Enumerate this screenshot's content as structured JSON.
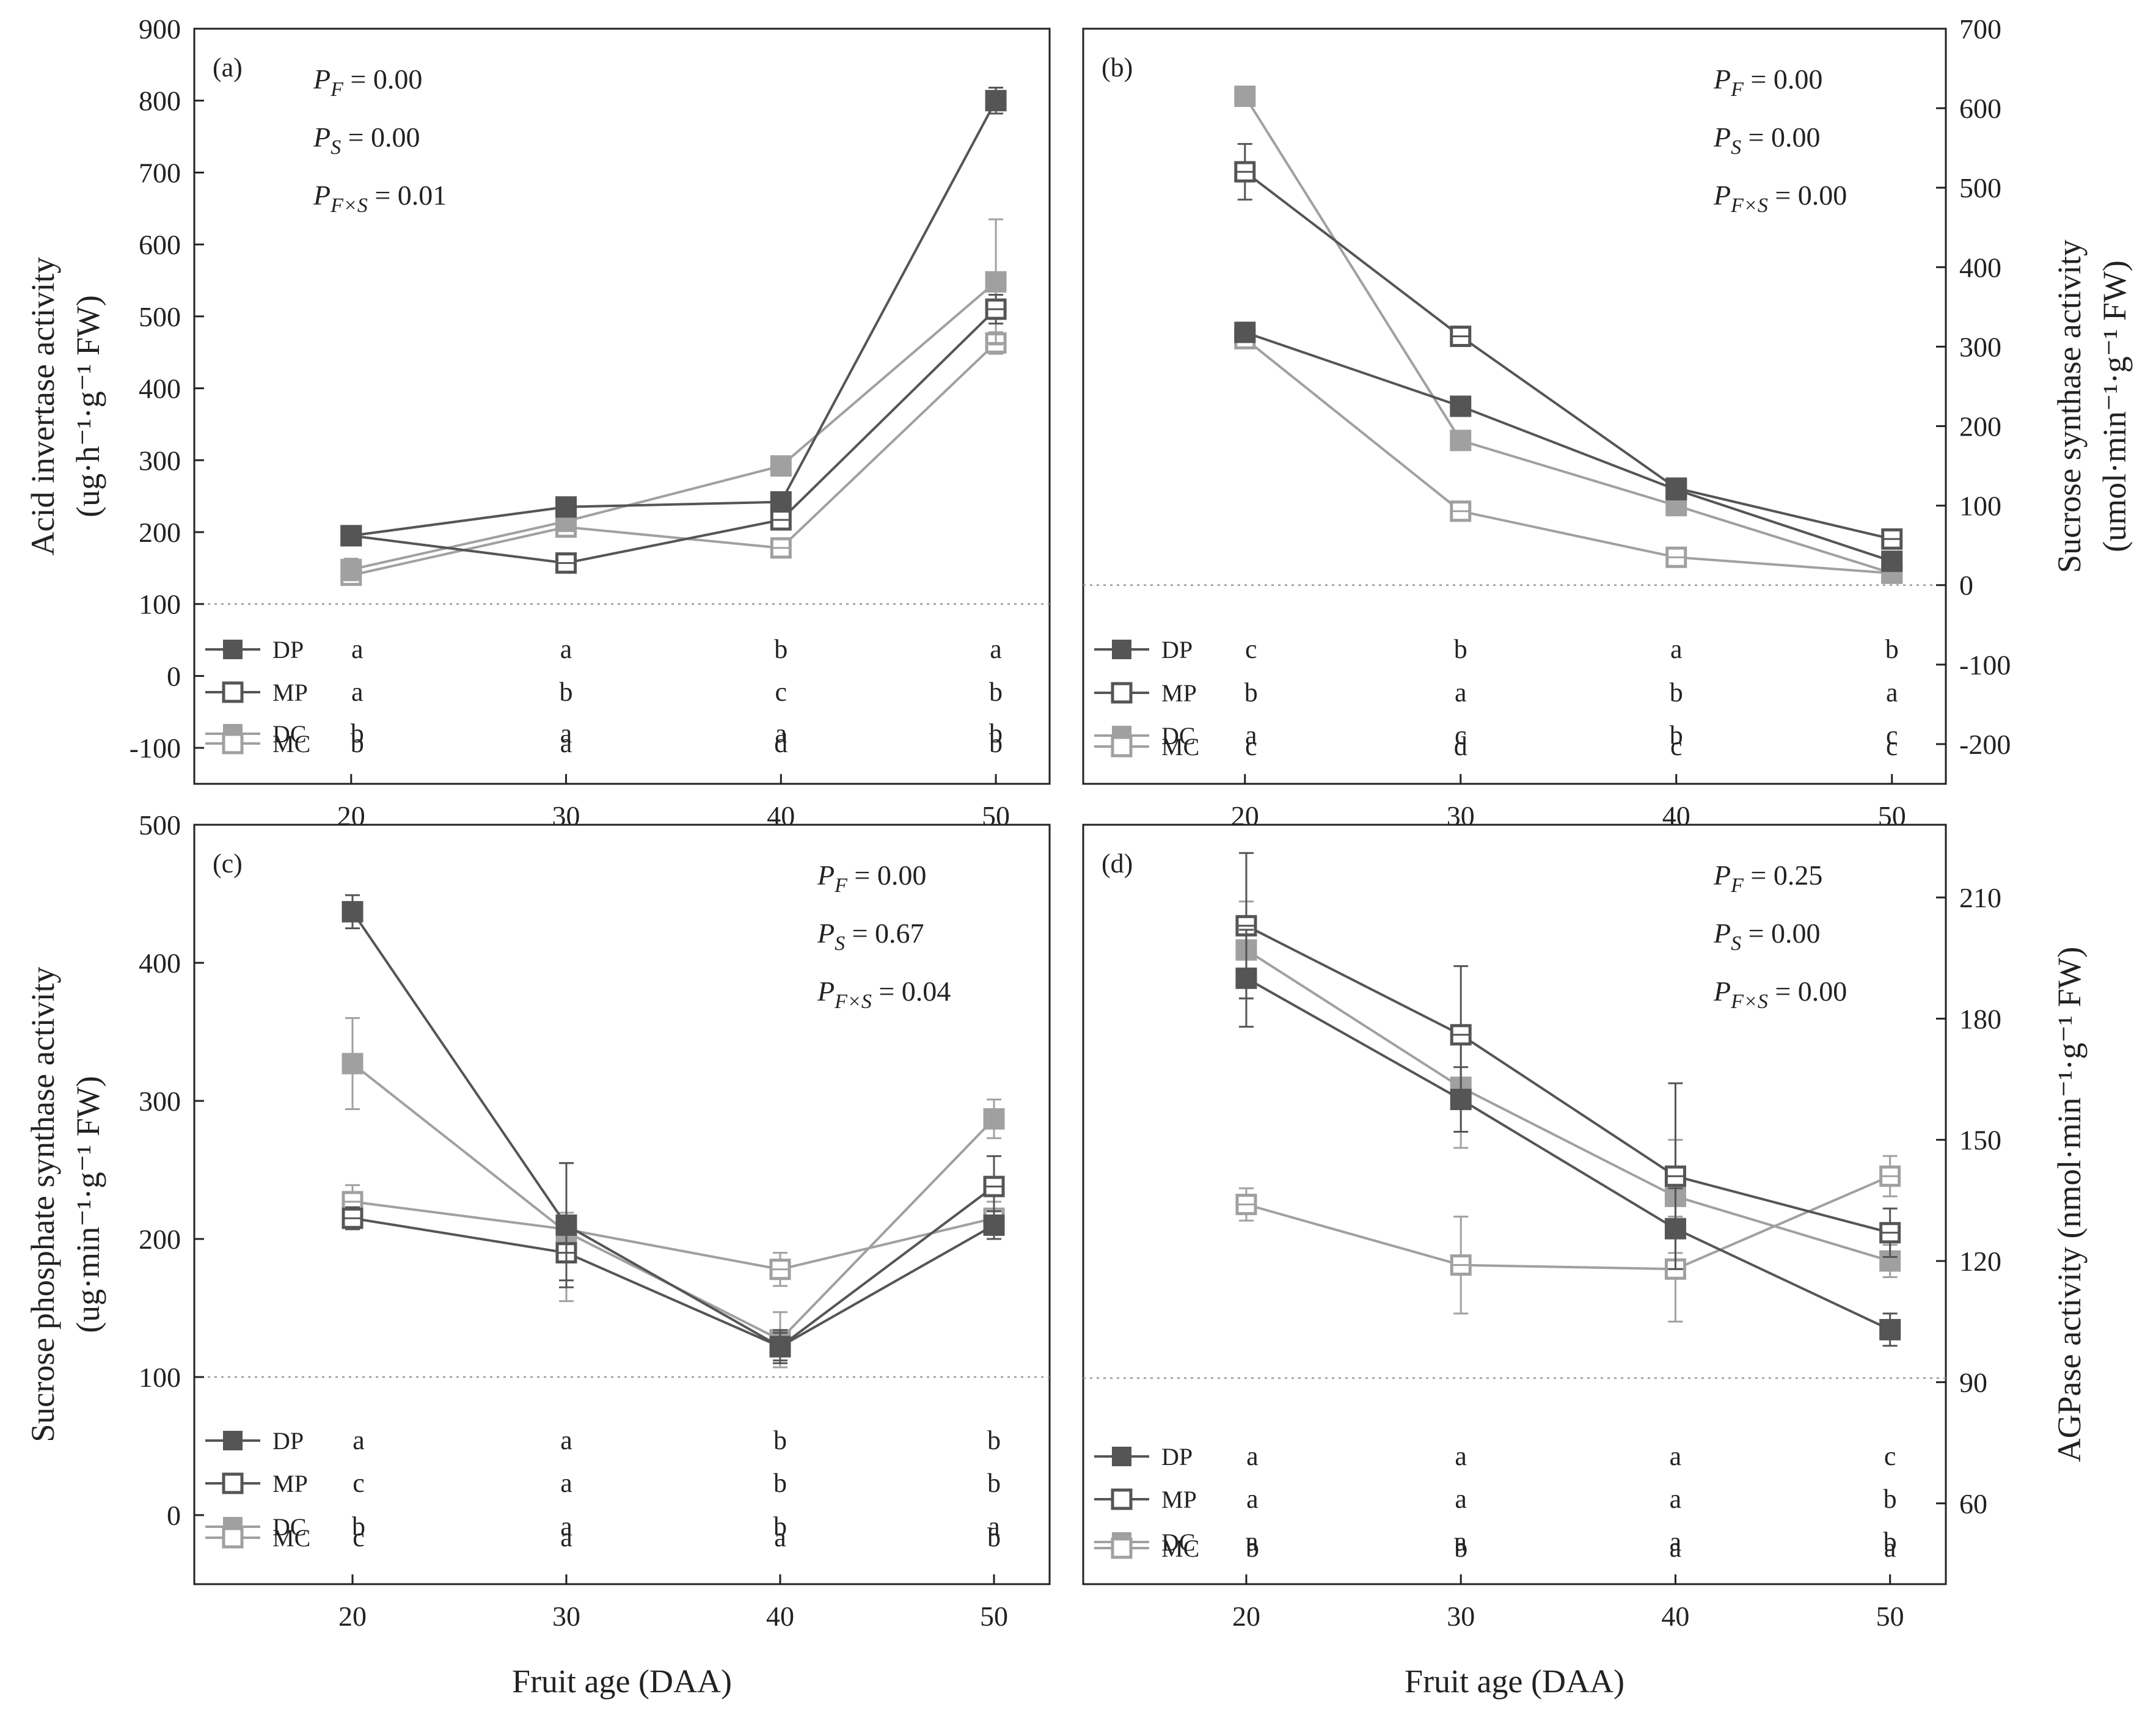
{
  "chart_data": [
    {
      "type": "line",
      "panel_label": "(a)",
      "ylabel_lines": [
        "Acid invertase activity",
        "(ug·h⁻¹·g⁻¹ FW)"
      ],
      "y_axis_side": "left",
      "ylim": [
        -150,
        900
      ],
      "yticks": [
        900,
        800,
        700,
        600,
        500,
        400,
        300,
        200,
        100,
        0,
        -100
      ],
      "x": [
        20,
        30,
        40,
        50
      ],
      "xticks": [
        20,
        30,
        40,
        50
      ],
      "xlim": [
        12.7,
        52.5
      ],
      "xlabel": "",
      "reference_line": 100,
      "stats": [
        "P_F = 0.00",
        "P_S = 0.00",
        "P_F×S = 0.01"
      ],
      "stats_position": "top-left",
      "series": [
        {
          "name": "DP",
          "values": [
            195,
            235,
            242,
            800
          ],
          "errors": [
            8,
            10,
            10,
            18
          ],
          "color": "#555555",
          "filled": true,
          "letters": [
            "a",
            "a",
            "b",
            "a"
          ]
        },
        {
          "name": "MP",
          "values": [
            195,
            157,
            217,
            510
          ],
          "errors": [
            8,
            8,
            10,
            20
          ],
          "color": "#555555",
          "filled": false,
          "letters": [
            "a",
            "b",
            "c",
            "b"
          ]
        },
        {
          "name": "DC",
          "values": [
            148,
            215,
            292,
            548
          ],
          "errors": [
            15,
            10,
            8,
            87
          ],
          "color": "#a0a0a0",
          "filled": true,
          "letters": [
            "b",
            "a",
            "a",
            "b"
          ]
        },
        {
          "name": "MC",
          "values": [
            140,
            207,
            178,
            463
          ],
          "errors": [
            12,
            12,
            10,
            15
          ],
          "color": "#a0a0a0",
          "filled": false,
          "letters": [
            "b",
            "a",
            "d",
            "b"
          ]
        }
      ]
    },
    {
      "type": "line",
      "panel_label": "(b)",
      "ylabel_lines": [
        "Sucrose synthase activity",
        "(umol·min⁻¹·g⁻¹ FW)"
      ],
      "y_axis_side": "right",
      "ylim": [
        -250,
        700
      ],
      "yticks": [
        700,
        600,
        500,
        400,
        300,
        200,
        100,
        0,
        -100,
        -200
      ],
      "x": [
        20,
        30,
        40,
        50
      ],
      "xticks": [
        20,
        30,
        40,
        50
      ],
      "xlim": [
        12.5,
        52.5
      ],
      "xlabel": "",
      "reference_line": 0,
      "stats": [
        "P_F = 0.00",
        "P_S = 0.00",
        "P_F×S = 0.00"
      ],
      "stats_position": "top-right",
      "series": [
        {
          "name": "DP",
          "values": [
            318,
            225,
            120,
            30
          ],
          "errors": [
            8,
            8,
            8,
            8
          ],
          "color": "#555555",
          "filled": true,
          "letters": [
            "c",
            "b",
            "a",
            "b"
          ]
        },
        {
          "name": "MP",
          "values": [
            520,
            313,
            122,
            58
          ],
          "errors": [
            35,
            8,
            8,
            8
          ],
          "color": "#555555",
          "filled": false,
          "letters": [
            "b",
            "a",
            "b",
            "a"
          ]
        },
        {
          "name": "DC",
          "values": [
            615,
            182,
            100,
            15
          ],
          "errors": [
            12,
            8,
            8,
            8
          ],
          "color": "#a0a0a0",
          "filled": true,
          "letters": [
            "a",
            "c",
            "b",
            "c"
          ]
        },
        {
          "name": "MC",
          "values": [
            310,
            93,
            35,
            15
          ],
          "errors": [
            8,
            8,
            8,
            5
          ],
          "color": "#a0a0a0",
          "filled": false,
          "letters": [
            "c",
            "d",
            "c",
            "c"
          ]
        }
      ]
    },
    {
      "type": "line",
      "panel_label": "(c)",
      "ylabel_lines": [
        "Sucrose phosphate synthase activity",
        "(ug·min⁻¹·g⁻¹ FW)"
      ],
      "y_axis_side": "left",
      "ylim": [
        -50,
        500
      ],
      "yticks": [
        500,
        400,
        300,
        200,
        100,
        0
      ],
      "x": [
        20,
        30,
        40,
        50
      ],
      "xticks": [
        20,
        30,
        40,
        50
      ],
      "xlim": [
        12.6,
        52.6
      ],
      "xlabel": "Fruit age (DAA)",
      "reference_line": 100,
      "stats": [
        "P_F = 0.00",
        "P_S = 0.67",
        "P_F×S = 0.04"
      ],
      "stats_position": "top-right",
      "series": [
        {
          "name": "DP",
          "values": [
            437,
            210,
            122,
            210
          ],
          "errors": [
            12,
            45,
            12,
            10
          ],
          "color": "#555555",
          "filled": true,
          "letters": [
            "a",
            "a",
            "b",
            "b"
          ]
        },
        {
          "name": "MP",
          "values": [
            215,
            190,
            122,
            238
          ],
          "errors": [
            8,
            20,
            10,
            22
          ],
          "color": "#555555",
          "filled": false,
          "letters": [
            "c",
            "a",
            "b",
            "b"
          ]
        },
        {
          "name": "DC",
          "values": [
            327,
            205,
            127,
            287
          ],
          "errors": [
            33,
            50,
            20,
            14
          ],
          "color": "#a0a0a0",
          "filled": true,
          "letters": [
            "b",
            "a",
            "b",
            "a"
          ]
        },
        {
          "name": "MC",
          "values": [
            227,
            207,
            178,
            215
          ],
          "errors": [
            12,
            12,
            12,
            12
          ],
          "color": "#a0a0a0",
          "filled": false,
          "letters": [
            "c",
            "a",
            "a",
            "b"
          ]
        }
      ]
    },
    {
      "type": "line",
      "panel_label": "(d)",
      "ylabel_lines": [
        "AGPase activity (nmol·min⁻¹·g⁻¹ FW)"
      ],
      "y_axis_side": "right",
      "ylim": [
        40,
        228
      ],
      "yticks": [
        210,
        180,
        150,
        120,
        90,
        60
      ],
      "x": [
        20,
        30,
        40,
        50
      ],
      "xticks": [
        20,
        30,
        40,
        50
      ],
      "xlim": [
        12.4,
        52.6
      ],
      "xlabel": "Fruit age (DAA)",
      "reference_line": 91,
      "stats": [
        "P_F = 0.25",
        "P_S = 0.00",
        "P_F×S = 0.00"
      ],
      "stats_position": "top-right",
      "series": [
        {
          "name": "DP",
          "values": [
            190,
            160,
            128,
            103
          ],
          "errors": [
            12,
            8,
            10,
            4
          ],
          "color": "#555555",
          "filled": true,
          "letters": [
            "a",
            "a",
            "a",
            "c"
          ]
        },
        {
          "name": "MP",
          "values": [
            203,
            176,
            141,
            127
          ],
          "errors": [
            18,
            17,
            23,
            6
          ],
          "color": "#555555",
          "filled": false,
          "letters": [
            "a",
            "a",
            "a",
            "b"
          ]
        },
        {
          "name": "DC",
          "values": [
            197,
            163,
            136,
            120
          ],
          "errors": [
            12,
            15,
            14,
            4
          ],
          "color": "#a0a0a0",
          "filled": true,
          "letters": [
            "a",
            "a",
            "a",
            "b"
          ]
        },
        {
          "name": "MC",
          "values": [
            134,
            119,
            118,
            141
          ],
          "errors": [
            4,
            12,
            13,
            5
          ],
          "color": "#a0a0a0",
          "filled": false,
          "letters": [
            "b",
            "b",
            "a",
            "a"
          ]
        }
      ]
    }
  ]
}
